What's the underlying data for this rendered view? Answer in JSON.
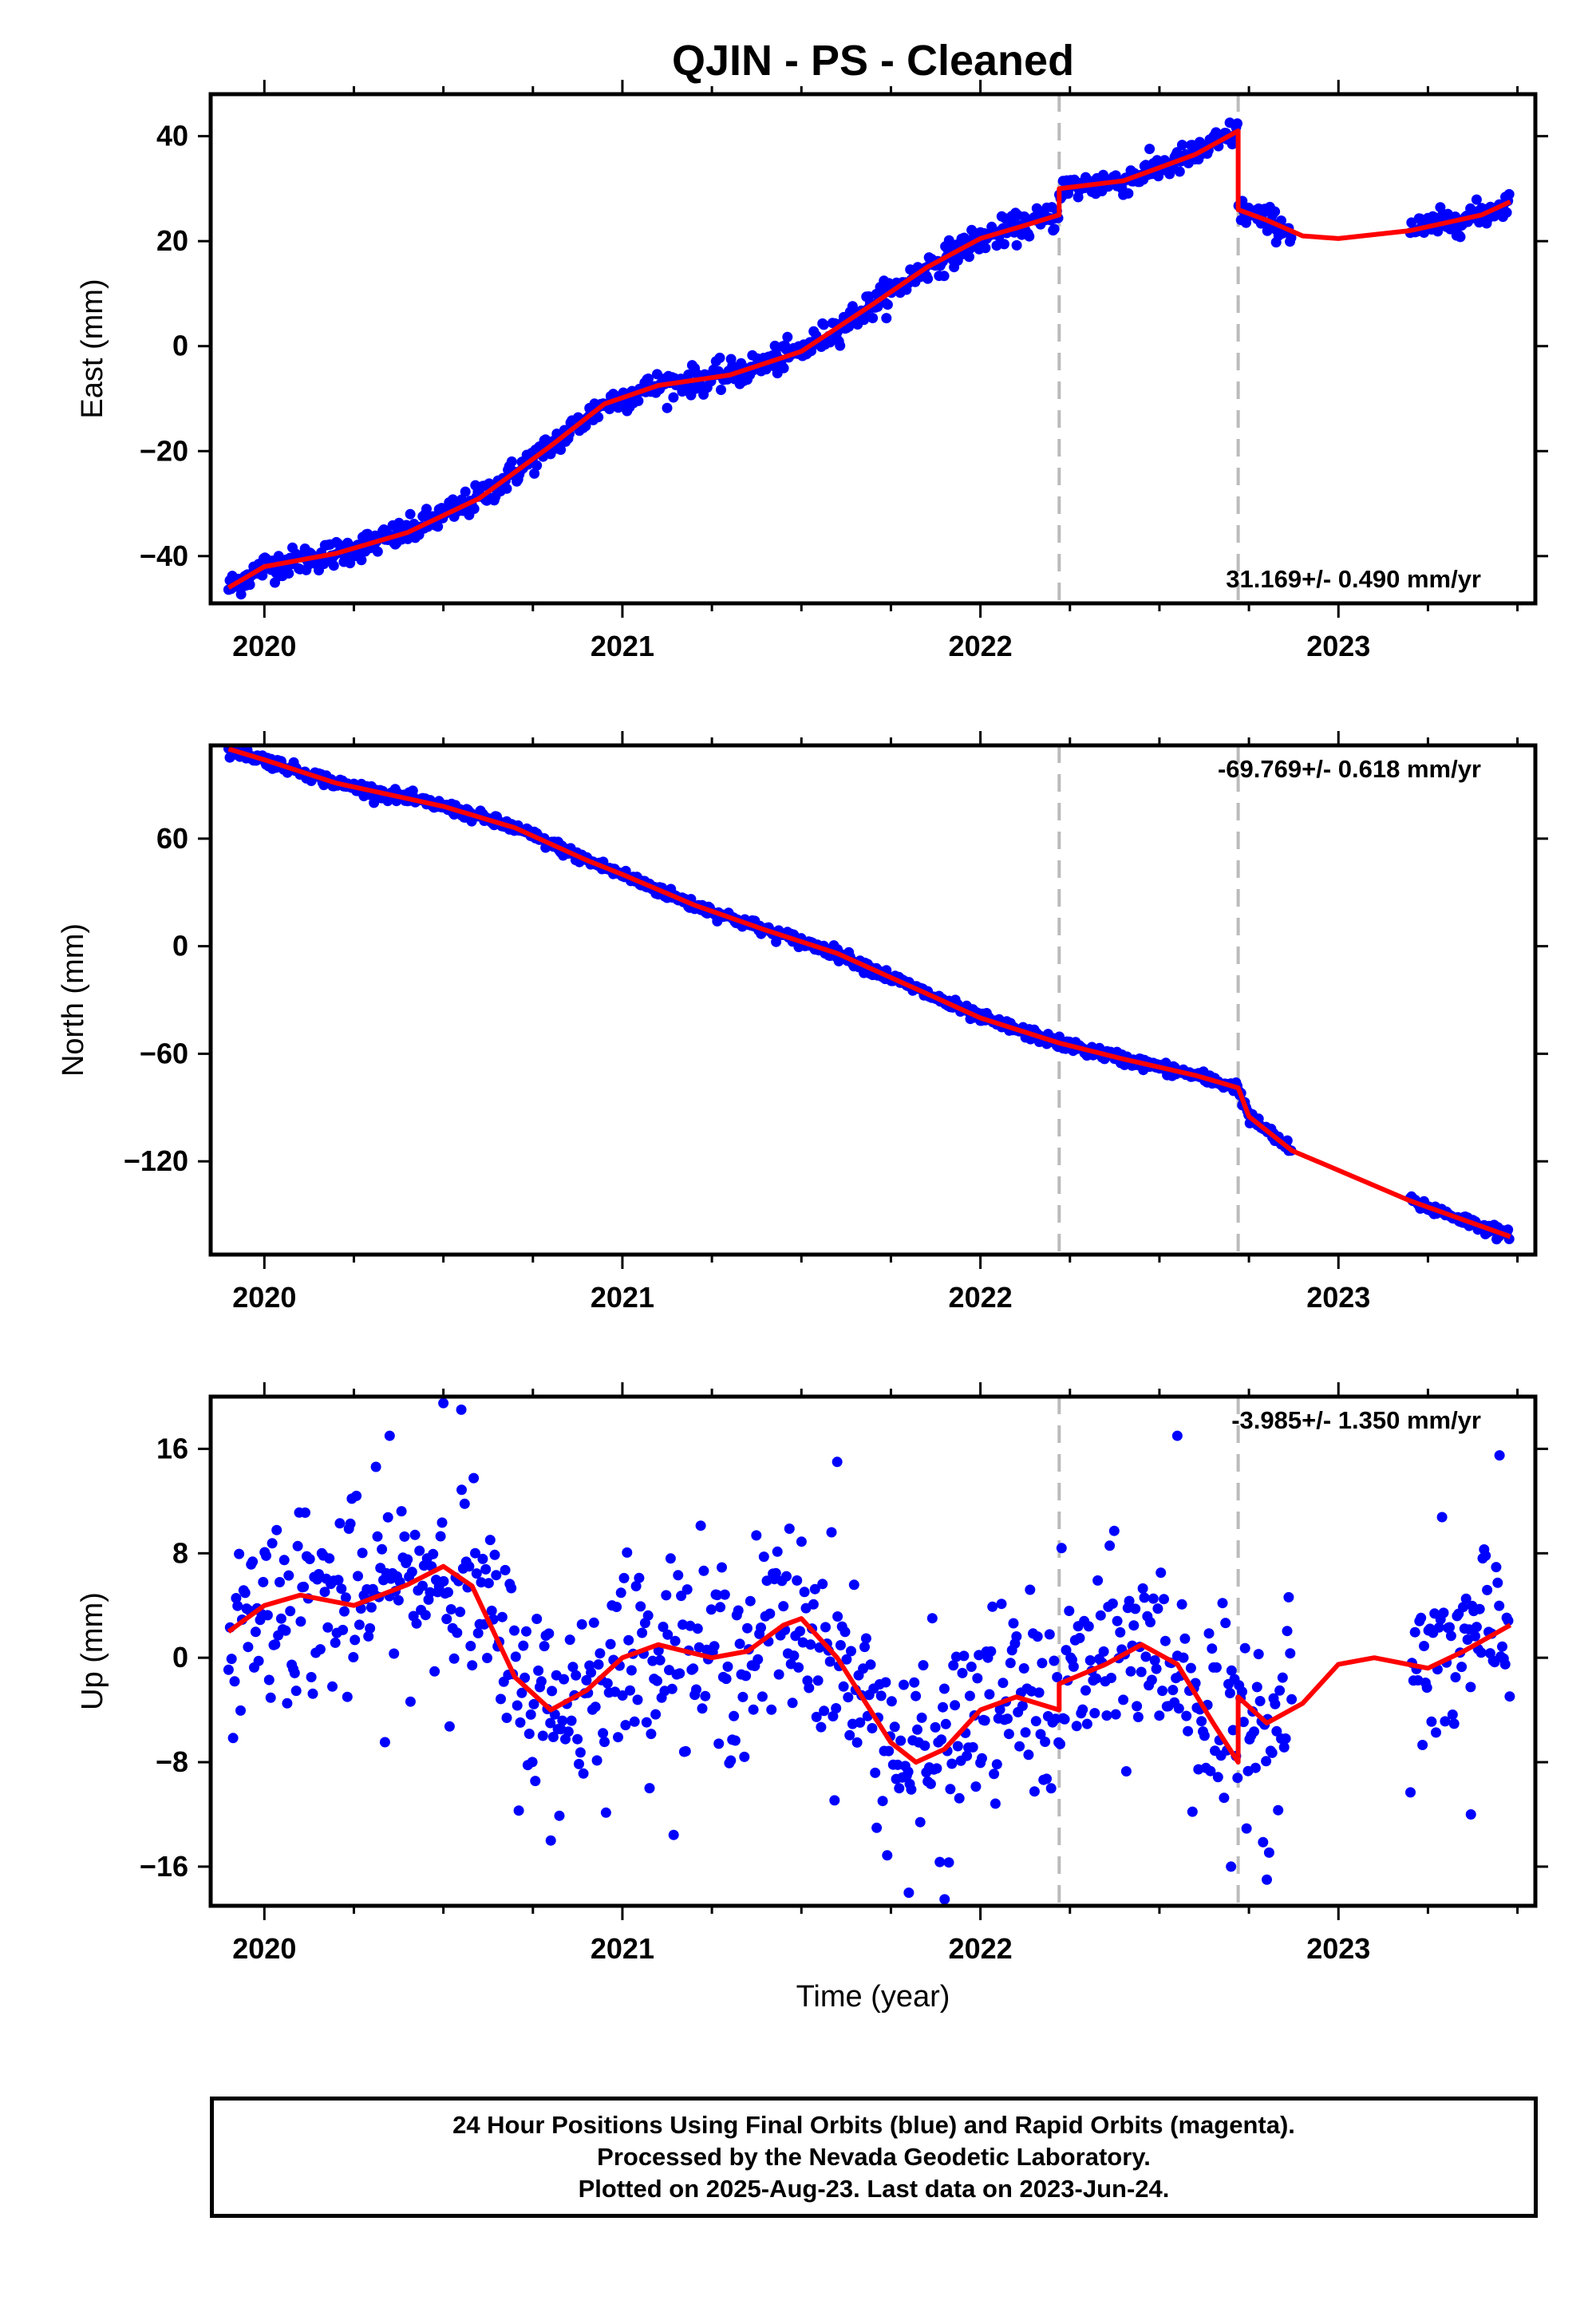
{
  "title": "QJIN  - PS - Cleaned",
  "colors": {
    "data": "#0000ff",
    "model": "#ff0000",
    "event_line": "#bbbbbb",
    "axis": "#000000"
  },
  "x_tick_labels": [
    "2020",
    "2021",
    "2022",
    "2023"
  ],
  "x_axis_label": "Time (year)",
  "event_lines": [
    2022.22,
    2022.72
  ],
  "footer": {
    "line1": "24 Hour Positions Using Final Orbits (blue) and Rapid Orbits (magenta).",
    "line2": "Processed by the Nevada Geodetic Laboratory.",
    "line3": "Plotted on 2025-Aug-23. Last data on 2023-Jun-24."
  },
  "chart_data": [
    {
      "type": "scatter",
      "name": "east",
      "ylabel": "East (mm)",
      "rate": "31.169+/- 0.490 mm/yr",
      "rate_position": "bottom-right",
      "xlim": [
        2019.85,
        2023.55
      ],
      "ylim": [
        -49,
        48
      ],
      "y_ticks": [
        -40,
        -20,
        0,
        20,
        40
      ],
      "y_tick_labels": [
        "−40",
        "−20",
        "0",
        "20",
        "40"
      ],
      "gaps": [
        [
          2022.87,
          2023.2
        ]
      ],
      "scatter_spread": 1.3,
      "model": [
        [
          2019.9,
          -46
        ],
        [
          2020.0,
          -42
        ],
        [
          2020.2,
          -39.5
        ],
        [
          2020.4,
          -35.5
        ],
        [
          2020.6,
          -29
        ],
        [
          2020.8,
          -19
        ],
        [
          2020.95,
          -11
        ],
        [
          2021.1,
          -7.5
        ],
        [
          2021.3,
          -5.5
        ],
        [
          2021.5,
          -1
        ],
        [
          2021.7,
          8
        ],
        [
          2021.85,
          15
        ],
        [
          2022.0,
          20.5
        ],
        [
          2022.1,
          22.5
        ],
        [
          2022.22,
          25
        ],
        [
          2022.22,
          30
        ],
        [
          2022.4,
          31.5
        ],
        [
          2022.6,
          36.5
        ],
        [
          2022.72,
          41
        ],
        [
          2022.72,
          26
        ],
        [
          2022.8,
          24
        ],
        [
          2022.9,
          21
        ],
        [
          2023.0,
          20.5
        ],
        [
          2023.2,
          22
        ],
        [
          2023.4,
          25
        ],
        [
          2023.48,
          27.5
        ]
      ]
    },
    {
      "type": "scatter",
      "name": "north",
      "ylabel": "North (mm)",
      "rate": "-69.769+/- 0.618 mm/yr",
      "rate_position": "top-right",
      "xlim": [
        2019.85,
        2023.55
      ],
      "ylim": [
        -172,
        112
      ],
      "y_ticks": [
        -120,
        -60,
        0,
        60
      ],
      "y_tick_labels": [
        "−120",
        "−60",
        "0",
        "60"
      ],
      "gaps": [
        [
          2022.87,
          2023.2
        ]
      ],
      "scatter_spread": 1.6,
      "model": [
        [
          2019.9,
          110
        ],
        [
          2020.0,
          104
        ],
        [
          2020.2,
          91
        ],
        [
          2020.5,
          78
        ],
        [
          2020.7,
          66
        ],
        [
          2020.9,
          48
        ],
        [
          2021.0,
          40
        ],
        [
          2021.2,
          23
        ],
        [
          2021.4,
          9
        ],
        [
          2021.6,
          -4
        ],
        [
          2021.8,
          -22
        ],
        [
          2022.0,
          -40
        ],
        [
          2022.22,
          -54
        ],
        [
          2022.4,
          -63
        ],
        [
          2022.6,
          -72
        ],
        [
          2022.72,
          -79
        ],
        [
          2022.75,
          -95
        ],
        [
          2022.87,
          -114
        ],
        [
          2023.0,
          -125
        ],
        [
          2023.2,
          -142
        ],
        [
          2023.48,
          -162
        ]
      ]
    },
    {
      "type": "scatter",
      "name": "up",
      "ylabel": "Up (mm)",
      "rate": "-3.985+/- 1.350 mm/yr",
      "rate_position": "top-right",
      "xlim": [
        2019.85,
        2023.55
      ],
      "ylim": [
        -19,
        20
      ],
      "y_ticks": [
        -16,
        -8,
        0,
        8,
        16
      ],
      "y_tick_labels": [
        "−16",
        "−8",
        "0",
        "8",
        "16"
      ],
      "gaps": [
        [
          2022.87,
          2023.2
        ]
      ],
      "scatter_spread": 3.8,
      "model": [
        [
          2019.9,
          2
        ],
        [
          2020.0,
          4
        ],
        [
          2020.1,
          4.8
        ],
        [
          2020.25,
          4
        ],
        [
          2020.4,
          5.6
        ],
        [
          2020.5,
          7
        ],
        [
          2020.58,
          5.5
        ],
        [
          2020.7,
          -1.5
        ],
        [
          2020.8,
          -4
        ],
        [
          2020.9,
          -2.5
        ],
        [
          2021.0,
          0
        ],
        [
          2021.1,
          1
        ],
        [
          2021.25,
          0
        ],
        [
          2021.35,
          0.5
        ],
        [
          2021.45,
          2.5
        ],
        [
          2021.5,
          3
        ],
        [
          2021.6,
          0
        ],
        [
          2021.75,
          -6.5
        ],
        [
          2021.82,
          -8
        ],
        [
          2021.9,
          -7
        ],
        [
          2022.0,
          -4
        ],
        [
          2022.1,
          -3
        ],
        [
          2022.22,
          -4
        ],
        [
          2022.22,
          -2
        ],
        [
          2022.35,
          -0.5
        ],
        [
          2022.45,
          1
        ],
        [
          2022.55,
          -0.5
        ],
        [
          2022.65,
          -5
        ],
        [
          2022.72,
          -8
        ],
        [
          2022.72,
          -3
        ],
        [
          2022.8,
          -5
        ],
        [
          2022.9,
          -3.5
        ],
        [
          2023.0,
          -0.5
        ],
        [
          2023.1,
          0
        ],
        [
          2023.25,
          -0.8
        ],
        [
          2023.35,
          0.5
        ],
        [
          2023.48,
          2.5
        ]
      ],
      "outliers": [
        [
          2020.5,
          19.5
        ],
        [
          2020.55,
          19
        ],
        [
          2020.35,
          17
        ],
        [
          2021.6,
          15
        ],
        [
          2022.55,
          17
        ],
        [
          2023.45,
          15.5
        ],
        [
          2021.8,
          -18
        ],
        [
          2021.9,
          -18.5
        ],
        [
          2022.7,
          -16
        ],
        [
          2022.8,
          -17
        ],
        [
          2020.8,
          -14
        ],
        [
          2023.37,
          -12
        ]
      ]
    }
  ]
}
